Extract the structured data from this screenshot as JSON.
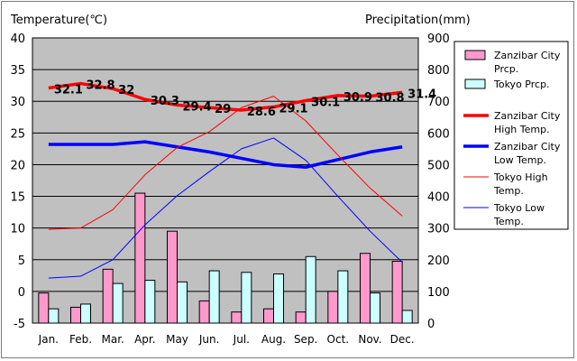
{
  "chart_data": {
    "type": "bar",
    "categories": [
      "Jan.",
      "Feb.",
      "Mar.",
      "Apr.",
      "May",
      "Jun.",
      "Jul.",
      "Aug.",
      "Sep.",
      "Oct.",
      "Nov.",
      "Dec."
    ],
    "y_left_label": "Temperature(℃)",
    "y_right_label": "Precipitation(mm)",
    "y_left_range": [
      -5,
      40
    ],
    "y_left_ticks": [
      -5,
      0,
      5,
      10,
      15,
      20,
      25,
      30,
      35,
      40
    ],
    "y_right_range": [
      0,
      900
    ],
    "y_right_ticks": [
      0,
      100,
      200,
      300,
      400,
      500,
      600,
      700,
      800,
      900
    ],
    "grid": true,
    "legend_position": "right",
    "series": [
      {
        "name": "Zanzibar City Prcp.",
        "type": "bar",
        "axis": "right",
        "color": "#ff99cc",
        "values": [
          95,
          50,
          170,
          410,
          290,
          70,
          35,
          45,
          35,
          100,
          220,
          195
        ]
      },
      {
        "name": "Tokyo Prcp.",
        "type": "bar",
        "axis": "right",
        "color": "#ccffff",
        "values": [
          45,
          60,
          125,
          135,
          130,
          165,
          160,
          155,
          210,
          165,
          95,
          40
        ]
      },
      {
        "name": "Zanzibar City High Temp.",
        "type": "line",
        "axis": "left",
        "color": "#ff0000",
        "width": "thick",
        "values": [
          32.1,
          32.8,
          32,
          30.3,
          29.4,
          29,
          28.6,
          29.1,
          30.1,
          30.9,
          30.8,
          31.4
        ],
        "labels": [
          "32.1",
          "32.8",
          "32",
          "30.3",
          "29.4",
          "29",
          "28.6",
          "29.1",
          "30.1",
          "30.9",
          "30.8",
          "31.4"
        ]
      },
      {
        "name": "Zanzibar City Low Temp.",
        "type": "line",
        "axis": "left",
        "color": "#0000ff",
        "width": "thick",
        "values": [
          23.2,
          23.2,
          23.2,
          23.6,
          22.8,
          22,
          21,
          20,
          19.6,
          20.8,
          22,
          22.8
        ]
      },
      {
        "name": "Tokyo High Temp.",
        "type": "line",
        "axis": "left",
        "color": "#ff0000",
        "width": "thin",
        "values": [
          9.8,
          10,
          12.9,
          18.4,
          22.7,
          25.2,
          29,
          30.8,
          26.9,
          21.5,
          16.3,
          11.9
        ]
      },
      {
        "name": "Tokyo Low Temp.",
        "type": "line",
        "axis": "left",
        "color": "#0000ff",
        "width": "thin",
        "values": [
          2.1,
          2.4,
          5,
          10.5,
          15.1,
          18.9,
          22.5,
          24.2,
          20.7,
          15,
          9.5,
          4.6
        ]
      }
    ],
    "legend": [
      "Zanzibar City Prcp.",
      "Tokyo Prcp.",
      "Zanzibar City High Temp.",
      "Zanzibar City Low Temp.",
      "Tokyo High Temp.",
      "Tokyo Low Temp."
    ]
  }
}
